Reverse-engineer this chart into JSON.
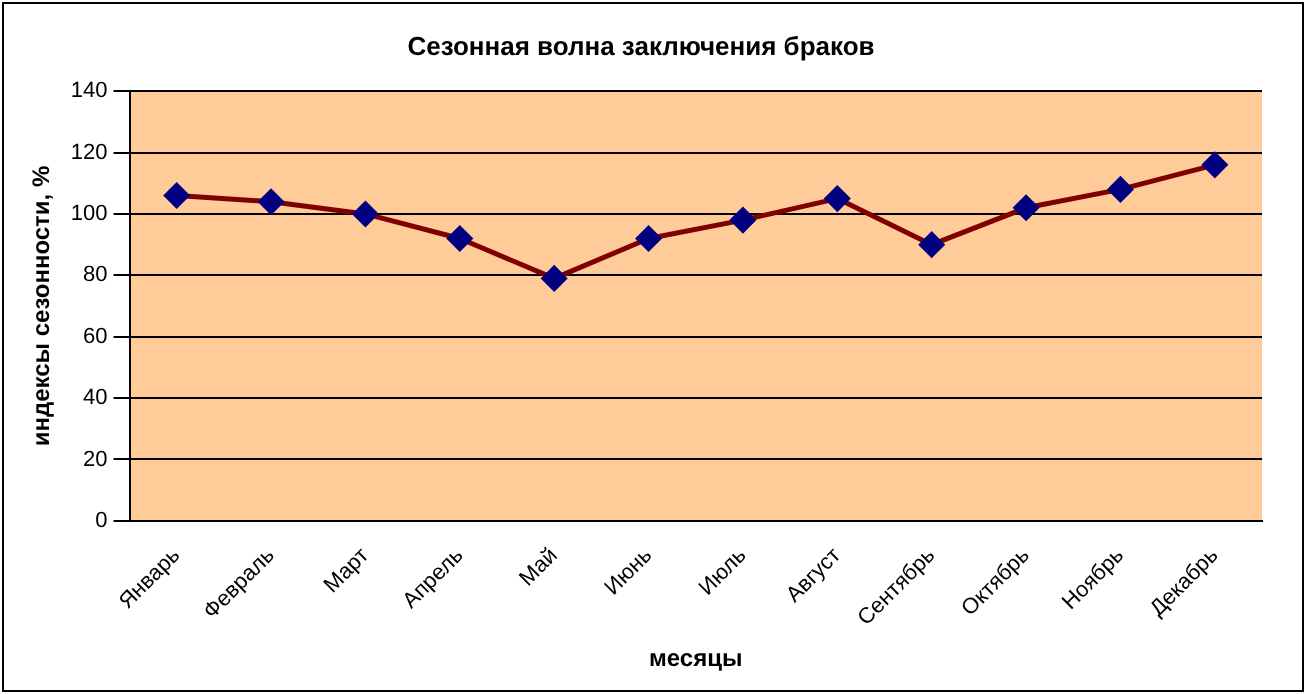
{
  "chart_data": {
    "type": "line",
    "title": "Сезонная волна заключения браков",
    "xlabel": "месяцы",
    "ylabel": "индексы сезонности, %",
    "categories": [
      "Январь",
      "Февраль",
      "Март",
      "Апрель",
      "Май",
      "Июнь",
      "Июль",
      "Август",
      "Сентябрь",
      "Октябрь",
      "Ноябрь",
      "Декабрь"
    ],
    "series": [
      {
        "color": "#800000",
        "values": [
          106,
          104,
          100,
          92,
          79,
          92,
          98,
          105,
          90,
          102,
          108,
          116
        ]
      }
    ],
    "ylim": [
      0,
      140
    ],
    "yticks": [
      0,
      20,
      40,
      60,
      80,
      100,
      120,
      140
    ],
    "grid": "y",
    "legend": false,
    "marker": "diamond",
    "line_style": "solid"
  }
}
